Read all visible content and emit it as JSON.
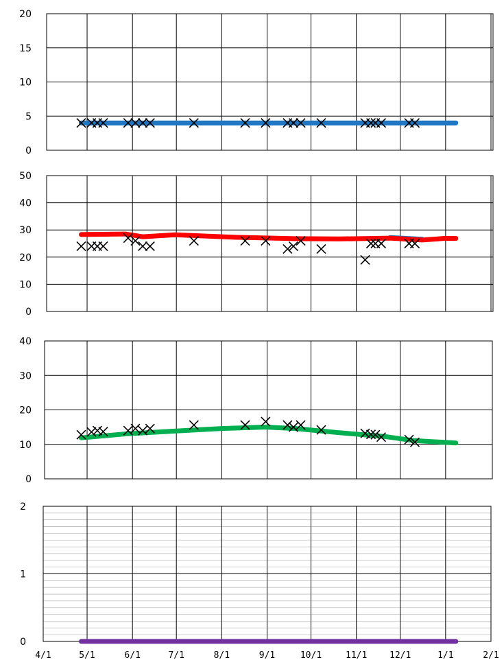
{
  "chart_data": [
    {
      "type": "line",
      "ylim": [
        0,
        20
      ],
      "yticks": [
        0,
        5,
        10,
        15,
        20
      ],
      "grid": true,
      "series": [
        {
          "type": "line",
          "color": "#1f77c4",
          "x": [
            "4/27",
            "7/1",
            "9/1",
            "11/1",
            "1/8"
          ],
          "y": [
            4,
            4,
            4,
            4,
            4
          ]
        },
        {
          "type": "scatter",
          "marker": "x",
          "color": "#000000",
          "x": [
            "4/27",
            "5/4",
            "5/8",
            "5/12",
            "5/29",
            "6/3",
            "6/8",
            "6/13",
            "7/13",
            "8/17",
            "8/31",
            "9/15",
            "9/19",
            "9/24",
            "10/8",
            "11/7",
            "11/11",
            "11/14",
            "11/18",
            "12/7",
            "12/11"
          ],
          "y": [
            4,
            4,
            4,
            4,
            4,
            4,
            4,
            4,
            4,
            4,
            4,
            4,
            4,
            4,
            4,
            4,
            4,
            4,
            4,
            4,
            4
          ]
        }
      ]
    },
    {
      "type": "line",
      "ylim": [
        0,
        50
      ],
      "yticks": [
        0,
        10,
        20,
        30,
        40,
        50
      ],
      "grid": true,
      "series": [
        {
          "type": "line",
          "color": "#1f77c4",
          "x": [
            "11/24",
            "12/16"
          ],
          "y": [
            27.2,
            26.6
          ]
        },
        {
          "type": "line",
          "color": "#ff0000",
          "x": [
            "4/27",
            "5/27",
            "6/8",
            "6/30",
            "8/10",
            "9/5",
            "9/20",
            "10/20",
            "11/24",
            "12/16",
            "12/31",
            "1/8"
          ],
          "y": [
            28.3,
            28.5,
            27.5,
            28.2,
            27.3,
            27.0,
            26.8,
            26.7,
            27.0,
            26.3,
            26.9,
            26.9
          ]
        },
        {
          "type": "scatter",
          "marker": "x",
          "color": "#000000",
          "x": [
            "4/27",
            "5/4",
            "5/8",
            "5/12",
            "5/29",
            "6/3",
            "6/8",
            "6/13",
            "7/13",
            "8/17",
            "8/31",
            "9/15",
            "9/19",
            "9/24",
            "10/8",
            "11/7",
            "11/11",
            "11/14",
            "11/18",
            "12/7",
            "12/11"
          ],
          "y": [
            24,
            24,
            24,
            24,
            27,
            26,
            24,
            24,
            26,
            26,
            26,
            23,
            24,
            26,
            23,
            19,
            25,
            25,
            25,
            25,
            25
          ]
        }
      ]
    },
    {
      "type": "line",
      "ylim": [
        0,
        40
      ],
      "yticks": [
        0,
        10,
        20,
        30,
        40
      ],
      "grid": true,
      "series": [
        {
          "type": "line",
          "color": "#00b050",
          "x": [
            "4/27",
            "5/29",
            "7/1",
            "8/1",
            "8/31",
            "9/20",
            "10/20",
            "11/20",
            "12/10",
            "1/8"
          ],
          "y": [
            11.9,
            13.1,
            13.9,
            14.6,
            15.0,
            14.6,
            13.4,
            12.3,
            11.1,
            10.4
          ]
        },
        {
          "type": "scatter",
          "marker": "x",
          "color": "#000000",
          "x": [
            "4/27",
            "5/4",
            "5/8",
            "5/12",
            "5/29",
            "6/3",
            "6/8",
            "6/13",
            "7/13",
            "8/17",
            "8/31",
            "9/15",
            "9/19",
            "9/24",
            "10/8",
            "11/7",
            "11/11",
            "11/14",
            "11/18",
            "12/7",
            "12/11"
          ],
          "y": [
            12.8,
            13.6,
            14.0,
            13.7,
            14.0,
            14.6,
            14.0,
            14.6,
            15.6,
            15.6,
            16.6,
            15.6,
            15.0,
            15.6,
            14.2,
            13.2,
            12.9,
            12.8,
            12.1,
            11.4,
            10.6
          ]
        }
      ]
    },
    {
      "type": "line",
      "ylim": [
        0,
        2
      ],
      "yticks": [
        0,
        1,
        2
      ],
      "grid": true,
      "series": [
        {
          "type": "line",
          "color": "#7030a0",
          "x": [
            "4/27",
            "1/8"
          ],
          "y": [
            0,
            0
          ]
        }
      ]
    }
  ],
  "x_axis": {
    "type": "date",
    "range": [
      "4/1",
      "2/1"
    ],
    "ticks": [
      {
        "date": "4/1",
        "label": "4/1"
      },
      {
        "date": "5/1",
        "label": "5/1"
      },
      {
        "date": "6/1",
        "label": "6/1"
      },
      {
        "date": "7/1",
        "label": "7/1"
      },
      {
        "date": "8/1",
        "label": "8/1"
      },
      {
        "date": "9/1",
        "label": "9/1"
      },
      {
        "date": "10/1",
        "label": "10/1"
      },
      {
        "date": "11/1",
        "label": "11/1"
      },
      {
        "date": "12/1",
        "label": "12/1"
      },
      {
        "date": "1/1",
        "label": "1/1"
      },
      {
        "date": "2/1",
        "label": "2/1"
      }
    ]
  }
}
